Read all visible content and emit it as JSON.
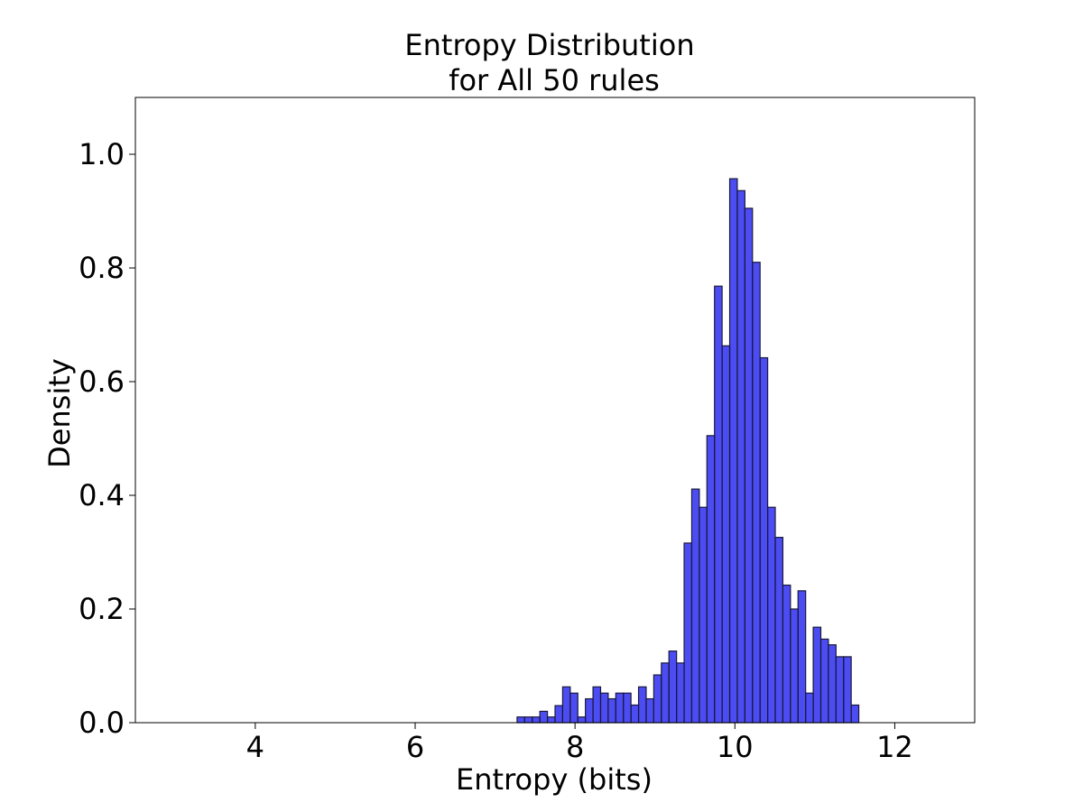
{
  "chart_data": {
    "type": "bar",
    "title_lines": [
      "Entropy Distribution",
      "for All 50 rules"
    ],
    "xlabel": "Entropy (bits)",
    "ylabel": "Density",
    "xlim": [
      2.5,
      13.0
    ],
    "ylim": [
      0.0,
      1.1
    ],
    "xticks": [
      4,
      6,
      8,
      10,
      12
    ],
    "xtick_labels": [
      "4",
      "6",
      "8",
      "10",
      "12"
    ],
    "yticks": [
      0.0,
      0.2,
      0.4,
      0.6,
      0.8,
      1.0
    ],
    "ytick_labels": [
      "0.0",
      "0.2",
      "0.4",
      "0.6",
      "0.8",
      "1.0"
    ],
    "grid": false,
    "bar_color": "#0000ee",
    "bar_opacity": 0.7,
    "bar_edge_color": "#1a1a3a",
    "bins": {
      "range": [
        3.0,
        12.5
      ],
      "count": 100
    },
    "values": [
      0,
      0,
      0,
      0,
      0,
      0,
      0,
      0,
      0,
      0,
      0,
      0,
      0,
      0,
      0,
      0,
      0,
      0,
      0,
      0,
      0,
      0,
      0,
      0,
      0,
      0,
      0,
      0,
      0,
      0,
      0,
      0,
      0,
      0,
      0,
      0,
      0,
      0,
      0,
      0,
      0,
      0,
      0,
      0,
      0,
      0.01,
      0.01,
      0.01,
      0.02,
      0.01,
      0.03,
      0.063,
      0.052,
      0.01,
      0.042,
      0.063,
      0.052,
      0.042,
      0.052,
      0.052,
      0.031,
      0.063,
      0.042,
      0.084,
      0.105,
      0.126,
      0.105,
      0.316,
      0.411,
      0.379,
      0.505,
      0.768,
      0.663,
      0.957,
      0.936,
      0.905,
      0.81,
      0.642,
      0.379,
      0.326,
      0.242,
      0.2,
      0.232,
      0.052,
      0.168,
      0.147,
      0.137,
      0.116,
      0.116,
      0.031,
      0,
      0,
      0,
      0,
      0,
      0,
      0,
      0,
      0,
      0,
      0
    ]
  }
}
